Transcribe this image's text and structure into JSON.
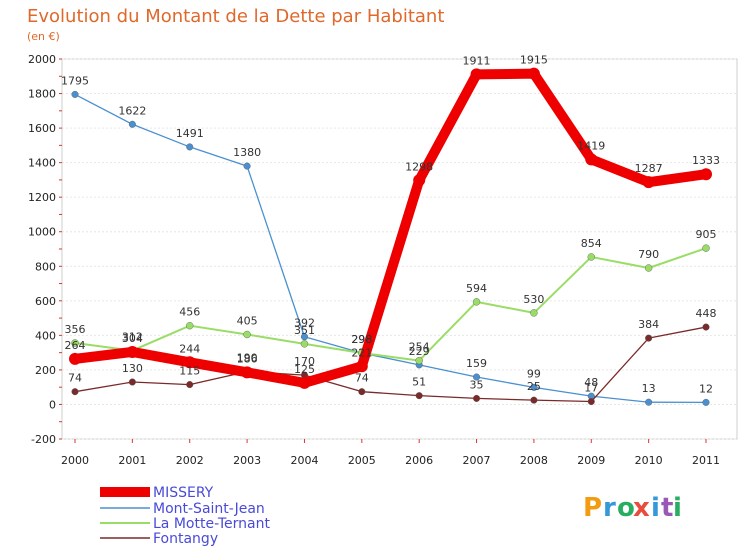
{
  "chart_data": {
    "type": "line",
    "title": "Evolution du Montant de la Dette par Habitant",
    "subtitle": "(en €)",
    "xlabel": "",
    "ylabel": "",
    "x": [
      "2000",
      "2001",
      "2002",
      "2003",
      "2004",
      "2005",
      "2006",
      "2007",
      "2008",
      "2009",
      "2010",
      "2011"
    ],
    "ylim": [
      -200,
      2000
    ],
    "yticks": [
      "-200",
      "0",
      "200",
      "400",
      "600",
      "800",
      "1000",
      "1200",
      "1400",
      "1600",
      "1800",
      "2000"
    ],
    "grid": true,
    "legend_position": "bottom-left",
    "series": [
      {
        "name": "MISSERY",
        "color": "#ee0000",
        "values": [
          264,
          304,
          244,
          186,
          125,
          221,
          1298,
          1911,
          1915,
          1419,
          1287,
          1333
        ],
        "labels": [
          "264",
          "304",
          "244",
          "186",
          "125",
          "221",
          "1298",
          "1911",
          "1915",
          "1419",
          "1287",
          "1333"
        ]
      },
      {
        "name": "Mont-Saint-Jean",
        "color": "#4a90d0",
        "values": [
          1795,
          1622,
          1491,
          1380,
          392,
          298,
          229,
          159,
          99,
          48,
          13,
          12
        ],
        "labels": [
          "1795",
          "1622",
          "1491",
          "1380",
          "392",
          "298",
          "229",
          "159",
          "99",
          "48",
          "13",
          "12"
        ]
      },
      {
        "name": "La Motte-Ternant",
        "color": "#99dd66",
        "values": [
          356,
          312,
          456,
          405,
          351,
          298,
          254,
          594,
          530,
          854,
          790,
          905
        ],
        "labels": [
          "356",
          "312",
          "456",
          "405",
          "351",
          "298",
          "254",
          "594",
          "530",
          "854",
          "790",
          "905"
        ]
      },
      {
        "name": "Fontangy",
        "color": "#7a2a2a",
        "values": [
          74,
          130,
          115,
          190,
          170,
          74,
          51,
          35,
          25,
          17,
          384,
          448
        ],
        "labels": [
          "74",
          "130",
          "115",
          "190",
          "170",
          "74",
          "51",
          "35",
          "25",
          "17",
          "384",
          "448"
        ]
      }
    ]
  },
  "brand": {
    "letters": [
      "P",
      "r",
      "o",
      "x",
      "i",
      "t",
      "i"
    ],
    "colors": [
      "#f39c12",
      "#3498db",
      "#27ae60",
      "#e74c3c",
      "#3498db",
      "#9b59b6",
      "#27ae60"
    ]
  }
}
